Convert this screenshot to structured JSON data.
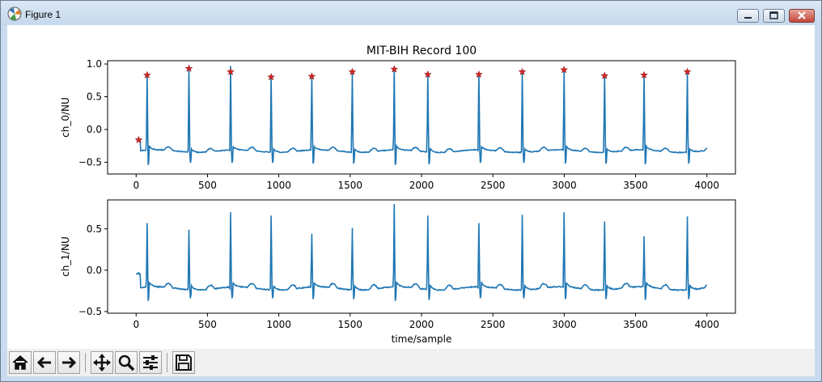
{
  "window": {
    "title": "Figure 1",
    "buttons": [
      "minimize",
      "maximize",
      "close"
    ]
  },
  "toolbar": {
    "buttons": [
      {
        "name": "home-icon"
      },
      {
        "name": "back-arrow-icon"
      },
      {
        "name": "forward-arrow-icon"
      },
      {
        "name": "pan-icon"
      },
      {
        "name": "zoom-icon"
      },
      {
        "name": "configure-subplots-icon"
      },
      {
        "name": "save-icon"
      }
    ]
  },
  "colors": {
    "line": "#1f77b4",
    "marker": "#d62728"
  },
  "chart_data": [
    {
      "type": "line",
      "title": "MIT-BIH Record 100",
      "xlabel": "",
      "ylabel": "ch_0/NU",
      "xlim": [
        -200,
        4200
      ],
      "ylim": [
        -0.68,
        1.05
      ],
      "xticks": [
        0,
        500,
        1000,
        1500,
        2000,
        2500,
        3000,
        3500,
        4000
      ],
      "yticks": [
        -0.5,
        0.0,
        0.5,
        1.0
      ],
      "ytick_labels": [
        "−0.5",
        "0.0",
        "0.5",
        "1.0"
      ],
      "baseline": -0.33,
      "trough": -0.55,
      "beats": [
        {
          "x": 77,
          "peak": 0.83
        },
        {
          "x": 370,
          "peak": 0.93
        },
        {
          "x": 662,
          "peak": 0.97
        },
        {
          "x": 946,
          "peak": 0.8
        },
        {
          "x": 1231,
          "peak": 0.81
        },
        {
          "x": 1515,
          "peak": 0.9
        },
        {
          "x": 1809,
          "peak": 0.92
        },
        {
          "x": 2044,
          "peak": 0.86
        },
        {
          "x": 2402,
          "peak": 0.86
        },
        {
          "x": 2706,
          "peak": 0.89
        },
        {
          "x": 2999,
          "peak": 0.91
        },
        {
          "x": 3283,
          "peak": 0.83
        },
        {
          "x": 3560,
          "peak": 0.85
        },
        {
          "x": 3863,
          "peak": 0.91
        }
      ],
      "markers": {
        "style": "star",
        "points": [
          {
            "x": 18,
            "y": -0.16
          },
          {
            "x": 77,
            "y": 0.83
          },
          {
            "x": 370,
            "y": 0.93
          },
          {
            "x": 662,
            "y": 0.88
          },
          {
            "x": 946,
            "y": 0.8
          },
          {
            "x": 1231,
            "y": 0.81
          },
          {
            "x": 1515,
            "y": 0.88
          },
          {
            "x": 1809,
            "y": 0.92
          },
          {
            "x": 2044,
            "y": 0.84
          },
          {
            "x": 2402,
            "y": 0.84
          },
          {
            "x": 2706,
            "y": 0.88
          },
          {
            "x": 2999,
            "y": 0.91
          },
          {
            "x": 3283,
            "y": 0.82
          },
          {
            "x": 3560,
            "y": 0.83
          },
          {
            "x": 3863,
            "y": 0.88
          }
        ]
      }
    },
    {
      "type": "line",
      "title": "",
      "xlabel": "time/sample",
      "ylabel": "ch_1/NU",
      "xlim": [
        -200,
        4200
      ],
      "ylim": [
        -0.52,
        0.85
      ],
      "xticks": [
        0,
        500,
        1000,
        1500,
        2000,
        2500,
        3000,
        3500,
        4000
      ],
      "yticks": [
        -0.5,
        0.0,
        0.5
      ],
      "ytick_labels": [
        "−0.5",
        "0.0",
        "0.5"
      ],
      "baseline": -0.22,
      "trough": -0.38,
      "beats": [
        {
          "x": 77,
          "peak": 0.57
        },
        {
          "x": 370,
          "peak": 0.49
        },
        {
          "x": 662,
          "peak": 0.7
        },
        {
          "x": 946,
          "peak": 0.66
        },
        {
          "x": 1231,
          "peak": 0.44
        },
        {
          "x": 1515,
          "peak": 0.51
        },
        {
          "x": 1809,
          "peak": 0.8
        },
        {
          "x": 2044,
          "peak": 0.66
        },
        {
          "x": 2402,
          "peak": 0.57
        },
        {
          "x": 2706,
          "peak": 0.67
        },
        {
          "x": 2999,
          "peak": 0.7
        },
        {
          "x": 3283,
          "peak": 0.59
        },
        {
          "x": 3560,
          "peak": 0.41
        },
        {
          "x": 3863,
          "peak": 0.65
        }
      ]
    }
  ]
}
